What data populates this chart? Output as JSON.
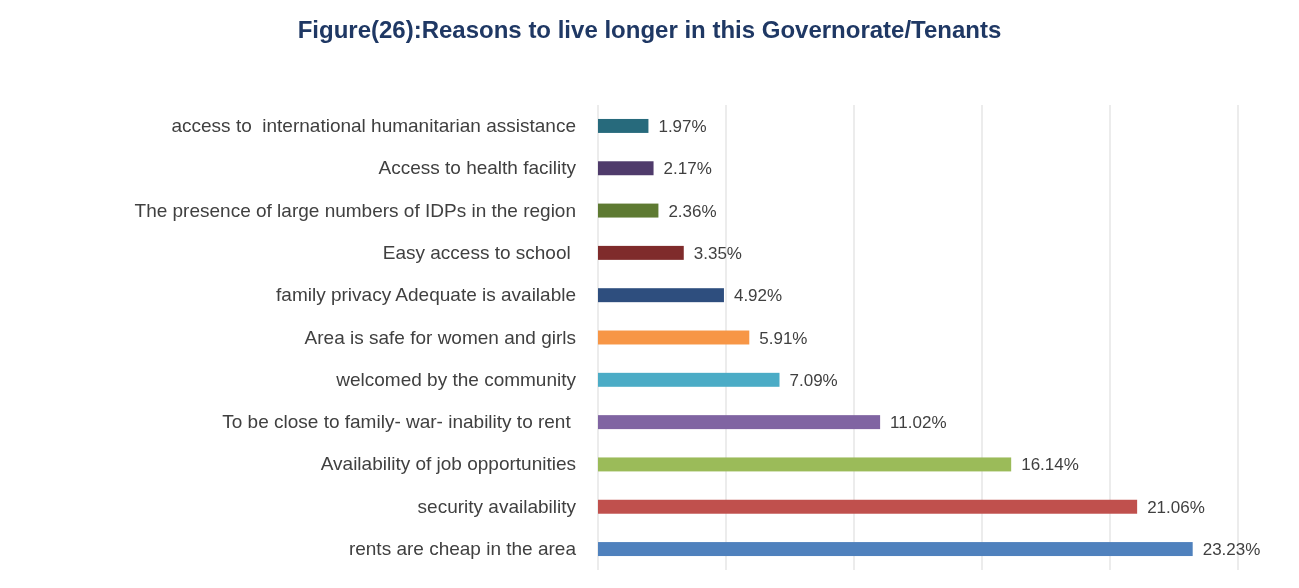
{
  "chart_data": {
    "type": "bar",
    "orientation": "horizontal",
    "title": "Figure(26):Reasons to live longer in this Governorate/Tenants",
    "categories": [
      "access to  international humanitarian assistance",
      "Access to health facility",
      "The presence of large numbers of IDPs in the region",
      "Easy access to school ",
      "family privacy Adequate is available",
      "Area is safe for women and girls",
      "welcomed by the community",
      "To be close to family- war- inability to rent ",
      "Availability of job opportunities",
      "security availability",
      "rents are cheap in the area"
    ],
    "values": [
      1.97,
      2.17,
      2.36,
      3.35,
      4.92,
      5.91,
      7.09,
      11.02,
      16.14,
      21.06,
      23.23
    ],
    "value_labels": [
      "1.97%",
      "2.17%",
      "2.36%",
      "3.35%",
      "4.92%",
      "5.91%",
      "7.09%",
      "11.02%",
      "16.14%",
      "21.06%",
      "23.23%"
    ],
    "colors": [
      "#276a7c",
      "#4f3b6b",
      "#5e7a32",
      "#7f2b2b",
      "#2e4e7e",
      "#f79646",
      "#4bacc6",
      "#8064a2",
      "#9bbb59",
      "#c0504d",
      "#4f81bd"
    ],
    "xlim": [
      0,
      25
    ],
    "xticks": [
      {
        "value": 0,
        "label": null
      },
      {
        "value": 5,
        "label": null
      },
      {
        "value": 10,
        "label": null
      },
      {
        "value": 15,
        "label": null
      },
      {
        "value": 20,
        "label": null
      },
      {
        "value": 25,
        "label": null
      }
    ],
    "grid": "x",
    "tick_labels": "y"
  }
}
